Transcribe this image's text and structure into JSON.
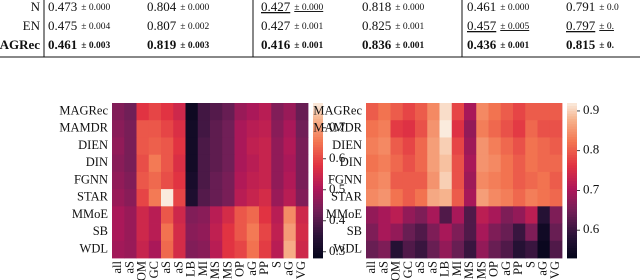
{
  "table": {
    "rows": [
      {
        "label": "N",
        "cells": [
          {
            "mean": "0.473",
            "std": "± 0.000"
          },
          {
            "mean": "0.804",
            "std": "± 0.000"
          },
          {
            "mean": "0.427",
            "std": "± 0.000",
            "underline": true
          },
          {
            "mean": "0.818",
            "std": "± 0.000"
          },
          {
            "mean": "0.461",
            "std": "± 0.000"
          },
          {
            "mean": "0.791",
            "std": "± 0.0"
          }
        ]
      },
      {
        "label": "EN",
        "cells": [
          {
            "mean": "0.475",
            "std": "± 0.004"
          },
          {
            "mean": "0.807",
            "std": "± 0.002"
          },
          {
            "mean": "0.427",
            "std": "± 0.001"
          },
          {
            "mean": "0.825",
            "std": "± 0.001"
          },
          {
            "mean": "0.457",
            "std": "± 0.005",
            "underline": true
          },
          {
            "mean": "0.797",
            "std": "± 0.",
            "underline": true
          }
        ]
      },
      {
        "label": "MAGRec",
        "bold": true,
        "cells": [
          {
            "mean": "0.461",
            "std": "± 0.003"
          },
          {
            "mean": "0.819",
            "std": "± 0.003"
          },
          {
            "mean": "0.416",
            "std": "± 0.001"
          },
          {
            "mean": "0.836",
            "std": "± 0.001"
          },
          {
            "mean": "0.436",
            "std": "± 0.001"
          },
          {
            "mean": "0.815",
            "std": "± 0."
          }
        ]
      }
    ]
  },
  "chart_data": [
    {
      "type": "heatmap",
      "colormap": "rocket",
      "clim": [
        0.28,
        0.78
      ],
      "ticks": [
        0.3,
        0.4,
        0.5,
        0.6,
        0.7
      ],
      "rows": [
        "MAGRec",
        "MAMDR",
        "DIEN",
        "DIN",
        "FGNN",
        "STAR",
        "MMoE",
        "SB",
        "WDL"
      ],
      "columns": [
        "all",
        "aS",
        "OM",
        "GC",
        "aS",
        "aS",
        "LB",
        "MI",
        "MS",
        "MS",
        "OP",
        "aG",
        "PP",
        "S",
        "aG",
        "VG"
      ],
      "values": [
        [
          0.45,
          0.43,
          0.58,
          0.6,
          0.58,
          0.55,
          0.3,
          0.38,
          0.4,
          0.42,
          0.48,
          0.5,
          0.52,
          0.45,
          0.48,
          0.42
        ],
        [
          0.46,
          0.44,
          0.62,
          0.62,
          0.6,
          0.57,
          0.31,
          0.38,
          0.41,
          0.43,
          0.5,
          0.52,
          0.53,
          0.46,
          0.5,
          0.43
        ],
        [
          0.47,
          0.44,
          0.62,
          0.63,
          0.62,
          0.58,
          0.31,
          0.39,
          0.41,
          0.43,
          0.5,
          0.53,
          0.54,
          0.47,
          0.51,
          0.44
        ],
        [
          0.46,
          0.44,
          0.61,
          0.66,
          0.62,
          0.57,
          0.31,
          0.39,
          0.41,
          0.43,
          0.5,
          0.52,
          0.54,
          0.47,
          0.5,
          0.44
        ],
        [
          0.47,
          0.45,
          0.62,
          0.64,
          0.61,
          0.58,
          0.32,
          0.39,
          0.42,
          0.44,
          0.51,
          0.53,
          0.54,
          0.47,
          0.51,
          0.44
        ],
        [
          0.48,
          0.46,
          0.6,
          0.66,
          0.78,
          0.6,
          0.33,
          0.4,
          0.42,
          0.44,
          0.52,
          0.54,
          0.56,
          0.48,
          0.52,
          0.45
        ],
        [
          0.5,
          0.48,
          0.55,
          0.52,
          0.62,
          0.55,
          0.45,
          0.46,
          0.52,
          0.56,
          0.62,
          0.64,
          0.58,
          0.52,
          0.68,
          0.55
        ],
        [
          0.5,
          0.48,
          0.55,
          0.52,
          0.65,
          0.56,
          0.46,
          0.47,
          0.53,
          0.58,
          0.62,
          0.66,
          0.6,
          0.53,
          0.7,
          0.56
        ],
        [
          0.49,
          0.48,
          0.54,
          0.5,
          0.64,
          0.56,
          0.45,
          0.46,
          0.52,
          0.58,
          0.6,
          0.65,
          0.59,
          0.52,
          0.72,
          0.55
        ]
      ]
    },
    {
      "type": "heatmap",
      "colormap": "rocket",
      "clim": [
        0.53,
        0.92
      ],
      "ticks": [
        0.6,
        0.7,
        0.8,
        0.9
      ],
      "rows": [
        "MAGRec",
        "MAMDR",
        "DIEN",
        "DIN",
        "FGNN",
        "STAR",
        "MMoE",
        "SB",
        "WDL"
      ],
      "columns": [
        "all",
        "aS",
        "OM",
        "GC",
        "aS",
        "aS",
        "LB",
        "MI",
        "MS",
        "MS",
        "OP",
        "aG",
        "PP",
        "S",
        "aG",
        "VG"
      ],
      "values": [
        [
          0.8,
          0.82,
          0.8,
          0.78,
          0.8,
          0.84,
          0.91,
          0.78,
          0.7,
          0.84,
          0.82,
          0.8,
          0.78,
          0.8,
          0.8,
          0.8
        ],
        [
          0.82,
          0.83,
          0.77,
          0.76,
          0.79,
          0.85,
          0.92,
          0.76,
          0.68,
          0.83,
          0.81,
          0.79,
          0.77,
          0.81,
          0.79,
          0.79
        ],
        [
          0.83,
          0.84,
          0.8,
          0.78,
          0.81,
          0.86,
          0.9,
          0.78,
          0.69,
          0.85,
          0.83,
          0.81,
          0.79,
          0.82,
          0.81,
          0.8
        ],
        [
          0.82,
          0.83,
          0.81,
          0.79,
          0.81,
          0.86,
          0.89,
          0.79,
          0.7,
          0.85,
          0.84,
          0.82,
          0.8,
          0.82,
          0.81,
          0.81
        ],
        [
          0.83,
          0.84,
          0.8,
          0.8,
          0.8,
          0.85,
          0.9,
          0.79,
          0.69,
          0.84,
          0.83,
          0.82,
          0.8,
          0.81,
          0.82,
          0.8
        ],
        [
          0.84,
          0.85,
          0.82,
          0.8,
          0.82,
          0.87,
          0.88,
          0.8,
          0.7,
          0.86,
          0.84,
          0.83,
          0.81,
          0.83,
          0.82,
          0.81
        ],
        [
          0.68,
          0.7,
          0.72,
          0.68,
          0.66,
          0.7,
          0.62,
          0.7,
          0.62,
          0.72,
          0.7,
          0.66,
          0.68,
          0.72,
          0.58,
          0.66
        ],
        [
          0.66,
          0.7,
          0.68,
          0.64,
          0.62,
          0.66,
          0.7,
          0.66,
          0.62,
          0.7,
          0.66,
          0.64,
          0.6,
          0.66,
          0.55,
          0.64
        ],
        [
          0.64,
          0.66,
          0.58,
          0.62,
          0.6,
          0.64,
          0.68,
          0.64,
          0.6,
          0.68,
          0.64,
          0.62,
          0.58,
          0.6,
          0.54,
          0.62
        ]
      ]
    }
  ]
}
